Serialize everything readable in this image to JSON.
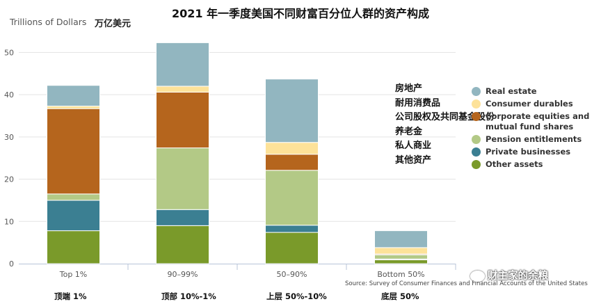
{
  "header": {
    "title": "2021 年一季度美国不同财富百分位人群的资产构成",
    "ylabel": "Trillions of Dollars",
    "ylabel_cn": "万亿美元"
  },
  "legend_cn": [
    "房地产",
    "耐用消费品",
    "公司股权及共同基金股份",
    "养老金",
    "私人商业",
    "其他资产"
  ],
  "categories_cn": [
    "顶端 1%",
    "顶部 10%-1%",
    "上层 50%-10%",
    "底层 50%"
  ],
  "source": "Source: Survey of Consumer Finances and Financial Accounts of the United States",
  "watermark": "财主家的余粮",
  "chart_data": {
    "type": "bar",
    "stacked": true,
    "title": "2021 年一季度美国不同财富百分位人群的资产构成",
    "ylabel": "Trillions of Dollars",
    "xlabel": "",
    "ylim": [
      0,
      55
    ],
    "yticks": [
      0,
      10,
      20,
      30,
      40,
      50
    ],
    "grid": true,
    "legend_position": "right",
    "categories": [
      "Top 1%",
      "90–99%",
      "50–90%",
      "Bottom 50%"
    ],
    "series": [
      {
        "name": "Other assets",
        "color": "#7a9a2a",
        "values": [
          7.8,
          9.0,
          7.4,
          0.9
        ]
      },
      {
        "name": "Private businesses",
        "color": "#3b7f92",
        "values": [
          7.2,
          3.8,
          1.7,
          0.2
        ]
      },
      {
        "name": "Pension entitlements",
        "color": "#b3c986",
        "values": [
          1.5,
          14.6,
          13.0,
          1.0
        ]
      },
      {
        "name": "Corporate equities and mutual fund shares",
        "color": "#b5651d",
        "values": [
          20.2,
          13.2,
          3.8,
          0.2
        ]
      },
      {
        "name": "Consumer durables",
        "color": "#fde299",
        "values": [
          0.6,
          1.4,
          2.8,
          1.5
        ]
      },
      {
        "name": "Real estate",
        "color": "#92b6c0",
        "values": [
          4.9,
          10.3,
          15.0,
          4.0
        ]
      }
    ],
    "legend_order": [
      "Real estate",
      "Consumer durables",
      "Corporate equities and mutual fund shares",
      "Pension entitlements",
      "Private businesses",
      "Other assets"
    ]
  }
}
